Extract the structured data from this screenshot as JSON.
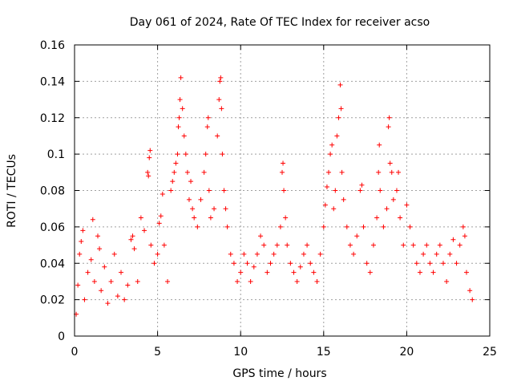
{
  "chart_data": {
    "type": "scatter",
    "title": "Day 061 of 2024, Rate Of TEC Index for receiver acso",
    "xlabel": "GPS time / hours",
    "ylabel": "ROTI / TECUs",
    "xlim": [
      0,
      25
    ],
    "ylim": [
      0,
      0.16
    ],
    "xticks": [
      0,
      5,
      10,
      15,
      20,
      25
    ],
    "yticks": [
      0,
      0.02,
      0.04,
      0.06,
      0.08,
      0.1,
      0.12,
      0.14,
      0.16
    ],
    "xtick_labels": [
      "0",
      "5",
      "10",
      "15",
      "20",
      "25"
    ],
    "ytick_labels": [
      "0",
      "0.02",
      "0.04",
      "0.06",
      "0.08",
      "0.1",
      "0.12",
      "0.14",
      "0.16"
    ],
    "grid": true,
    "marker": "+",
    "series": [
      {
        "name": "ROTI",
        "color": "#ff0000",
        "points": [
          [
            0.1,
            0.012
          ],
          [
            0.2,
            0.028
          ],
          [
            0.3,
            0.045
          ],
          [
            0.4,
            0.052
          ],
          [
            0.5,
            0.058
          ],
          [
            0.6,
            0.02
          ],
          [
            0.8,
            0.035
          ],
          [
            1.0,
            0.042
          ],
          [
            1.1,
            0.064
          ],
          [
            1.2,
            0.03
          ],
          [
            1.4,
            0.055
          ],
          [
            1.5,
            0.048
          ],
          [
            1.6,
            0.025
          ],
          [
            1.8,
            0.038
          ],
          [
            2.0,
            0.018
          ],
          [
            2.2,
            0.03
          ],
          [
            2.4,
            0.045
          ],
          [
            2.6,
            0.022
          ],
          [
            2.8,
            0.035
          ],
          [
            3.0,
            0.02
          ],
          [
            3.2,
            0.028
          ],
          [
            3.4,
            0.053
          ],
          [
            3.5,
            0.055
          ],
          [
            3.6,
            0.048
          ],
          [
            3.8,
            0.03
          ],
          [
            4.0,
            0.065
          ],
          [
            4.2,
            0.058
          ],
          [
            4.4,
            0.09
          ],
          [
            4.45,
            0.088
          ],
          [
            4.5,
            0.098
          ],
          [
            4.55,
            0.102
          ],
          [
            4.6,
            0.05
          ],
          [
            4.8,
            0.04
          ],
          [
            5.0,
            0.045
          ],
          [
            5.1,
            0.062
          ],
          [
            5.2,
            0.066
          ],
          [
            5.3,
            0.078
          ],
          [
            5.4,
            0.05
          ],
          [
            5.6,
            0.03
          ],
          [
            5.8,
            0.08
          ],
          [
            5.9,
            0.085
          ],
          [
            6.0,
            0.09
          ],
          [
            6.1,
            0.095
          ],
          [
            6.2,
            0.1
          ],
          [
            6.25,
            0.115
          ],
          [
            6.3,
            0.12
          ],
          [
            6.35,
            0.13
          ],
          [
            6.4,
            0.142
          ],
          [
            6.5,
            0.125
          ],
          [
            6.6,
            0.11
          ],
          [
            6.7,
            0.1
          ],
          [
            6.8,
            0.09
          ],
          [
            6.9,
            0.075
          ],
          [
            7.0,
            0.085
          ],
          [
            7.1,
            0.07
          ],
          [
            7.2,
            0.065
          ],
          [
            7.4,
            0.06
          ],
          [
            7.6,
            0.075
          ],
          [
            7.8,
            0.09
          ],
          [
            7.9,
            0.1
          ],
          [
            8.0,
            0.115
          ],
          [
            8.05,
            0.12
          ],
          [
            8.1,
            0.08
          ],
          [
            8.2,
            0.065
          ],
          [
            8.4,
            0.07
          ],
          [
            8.6,
            0.11
          ],
          [
            8.7,
            0.13
          ],
          [
            8.75,
            0.14
          ],
          [
            8.8,
            0.142
          ],
          [
            8.85,
            0.125
          ],
          [
            8.9,
            0.1
          ],
          [
            9.0,
            0.08
          ],
          [
            9.1,
            0.07
          ],
          [
            9.2,
            0.06
          ],
          [
            9.4,
            0.045
          ],
          [
            9.6,
            0.04
          ],
          [
            9.8,
            0.03
          ],
          [
            10.0,
            0.035
          ],
          [
            10.2,
            0.045
          ],
          [
            10.4,
            0.04
          ],
          [
            10.6,
            0.03
          ],
          [
            10.8,
            0.038
          ],
          [
            11.0,
            0.045
          ],
          [
            11.2,
            0.055
          ],
          [
            11.4,
            0.05
          ],
          [
            11.6,
            0.035
          ],
          [
            11.8,
            0.04
          ],
          [
            12.0,
            0.045
          ],
          [
            12.2,
            0.05
          ],
          [
            12.4,
            0.06
          ],
          [
            12.5,
            0.09
          ],
          [
            12.55,
            0.095
          ],
          [
            12.6,
            0.08
          ],
          [
            12.7,
            0.065
          ],
          [
            12.8,
            0.05
          ],
          [
            13.0,
            0.04
          ],
          [
            13.2,
            0.035
          ],
          [
            13.4,
            0.03
          ],
          [
            13.6,
            0.038
          ],
          [
            13.8,
            0.045
          ],
          [
            14.0,
            0.05
          ],
          [
            14.2,
            0.04
          ],
          [
            14.4,
            0.035
          ],
          [
            14.6,
            0.03
          ],
          [
            14.8,
            0.045
          ],
          [
            15.0,
            0.06
          ],
          [
            15.1,
            0.072
          ],
          [
            15.2,
            0.082
          ],
          [
            15.3,
            0.09
          ],
          [
            15.4,
            0.1
          ],
          [
            15.5,
            0.105
          ],
          [
            15.6,
            0.07
          ],
          [
            15.7,
            0.08
          ],
          [
            15.8,
            0.11
          ],
          [
            15.9,
            0.12
          ],
          [
            16.0,
            0.138
          ],
          [
            16.05,
            0.125
          ],
          [
            16.1,
            0.09
          ],
          [
            16.2,
            0.075
          ],
          [
            16.4,
            0.06
          ],
          [
            16.6,
            0.05
          ],
          [
            16.8,
            0.045
          ],
          [
            17.0,
            0.055
          ],
          [
            17.2,
            0.08
          ],
          [
            17.3,
            0.083
          ],
          [
            17.4,
            0.06
          ],
          [
            17.6,
            0.04
          ],
          [
            17.8,
            0.035
          ],
          [
            18.0,
            0.05
          ],
          [
            18.2,
            0.065
          ],
          [
            18.3,
            0.09
          ],
          [
            18.35,
            0.105
          ],
          [
            18.4,
            0.08
          ],
          [
            18.6,
            0.06
          ],
          [
            18.8,
            0.07
          ],
          [
            18.9,
            0.115
          ],
          [
            18.95,
            0.12
          ],
          [
            19.0,
            0.095
          ],
          [
            19.1,
            0.09
          ],
          [
            19.2,
            0.075
          ],
          [
            19.4,
            0.08
          ],
          [
            19.5,
            0.09
          ],
          [
            19.6,
            0.065
          ],
          [
            19.8,
            0.05
          ],
          [
            20.0,
            0.072
          ],
          [
            20.2,
            0.06
          ],
          [
            20.4,
            0.05
          ],
          [
            20.6,
            0.04
          ],
          [
            20.8,
            0.035
          ],
          [
            21.0,
            0.045
          ],
          [
            21.2,
            0.05
          ],
          [
            21.4,
            0.04
          ],
          [
            21.6,
            0.035
          ],
          [
            21.8,
            0.045
          ],
          [
            22.0,
            0.05
          ],
          [
            22.2,
            0.04
          ],
          [
            22.4,
            0.03
          ],
          [
            22.6,
            0.045
          ],
          [
            22.8,
            0.053
          ],
          [
            23.0,
            0.04
          ],
          [
            23.2,
            0.05
          ],
          [
            23.4,
            0.06
          ],
          [
            23.5,
            0.055
          ],
          [
            23.6,
            0.035
          ],
          [
            23.8,
            0.025
          ],
          [
            23.95,
            0.02
          ]
        ]
      }
    ]
  }
}
